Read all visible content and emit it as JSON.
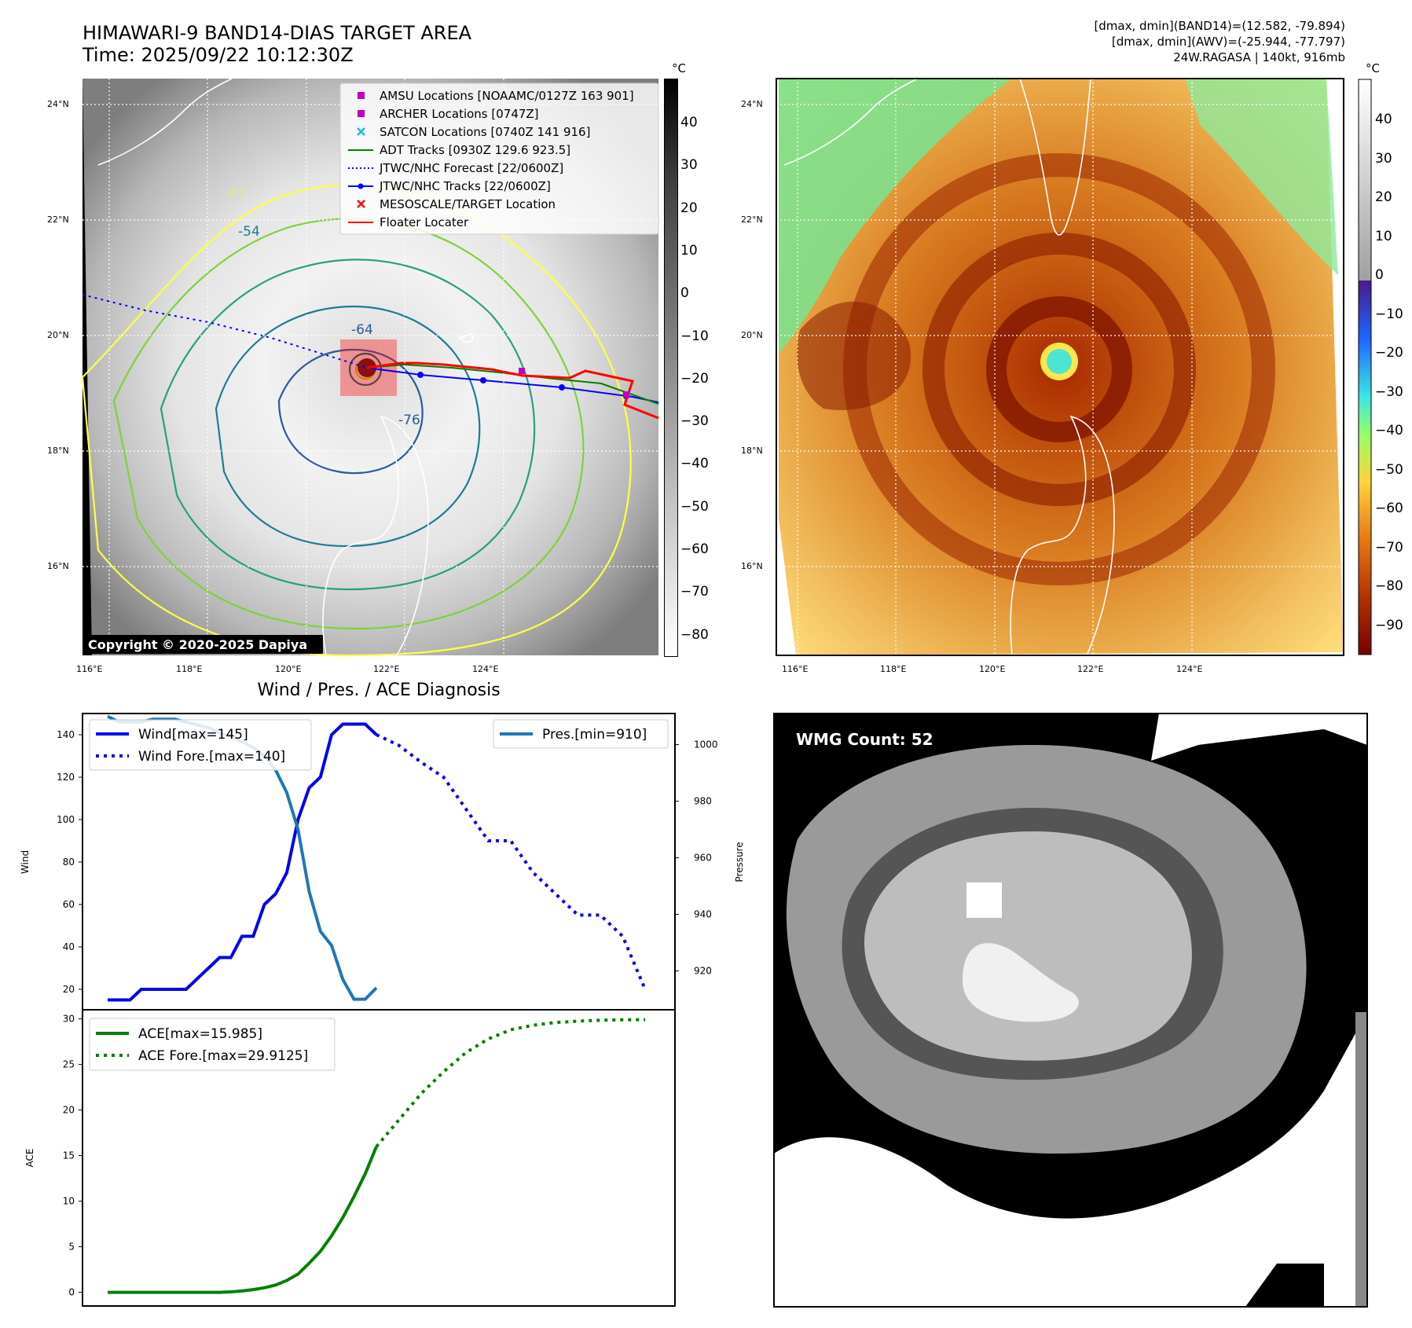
{
  "header": {
    "title_line1": "HIMAWARI-9 BAND14-DIAS TARGET AREA",
    "title_line2": "Time: 2025/09/22 10:12:30Z",
    "stats_line1": "[dmax, dmin](BAND14)=(12.582, -79.894)",
    "stats_line2": "[dmax, dmin](AWV)=(-25.944, -77.797)",
    "stats_line3": "24W.RAGASA | 140kt, 916mb"
  },
  "map_left": {
    "lon_ticks": [
      "116°E",
      "118°E",
      "120°E",
      "122°E",
      "124°E"
    ],
    "lat_ticks": [
      "24°N",
      "22°N",
      "20°N",
      "18°N",
      "16°N"
    ],
    "contour_labels": [
      "-31",
      "-54",
      "-64",
      "-76"
    ],
    "copyright": "Copyright © 2020-2025 Dapiya",
    "colorbar_unit": "°C",
    "colorbar_ticks": [
      "40",
      "30",
      "20",
      "10",
      "0",
      "−10",
      "−20",
      "−30",
      "−40",
      "−50",
      "−60",
      "−70",
      "−80"
    ],
    "legend": [
      {
        "label": "AMSU Locations [NOAAMC/0127Z 163 901]",
        "marker": "square",
        "color": "#bf00bf"
      },
      {
        "label": "ARCHER Locations [0747Z]",
        "marker": "square",
        "color": "#bf00bf"
      },
      {
        "label": "SATCON Locations [0740Z 141 916]",
        "marker": "x",
        "color": "#17becf"
      },
      {
        "label": "ADT Tracks [0930Z 129.6 923.5]",
        "marker": "line",
        "color": "#008000"
      },
      {
        "label": "JTWC/NHC Forecast [22/0600Z]",
        "marker": "dotted",
        "color": "#0000ff"
      },
      {
        "label": "JTWC/NHC Tracks [22/0600Z]",
        "marker": "line-dot",
        "color": "#0000ff"
      },
      {
        "label": "MESOSCALE/TARGET Location",
        "marker": "x",
        "color": "#ff0000"
      },
      {
        "label": "Floater Locater",
        "marker": "line",
        "color": "#ff0000"
      }
    ]
  },
  "map_right": {
    "lon_ticks": [
      "116°E",
      "118°E",
      "120°E",
      "122°E",
      "124°E"
    ],
    "lat_ticks": [
      "24°N",
      "22°N",
      "20°N",
      "18°N",
      "16°N"
    ],
    "colorbar_unit": "°C",
    "colorbar_ticks": [
      "40",
      "30",
      "20",
      "10",
      "0",
      "−10",
      "−20",
      "−30",
      "−40",
      "−50",
      "−60",
      "−70",
      "−80",
      "−90"
    ]
  },
  "wmg": {
    "label": "WMG Count: 52"
  },
  "chart_data": [
    {
      "type": "line",
      "title": "Wind / Pres. / ACE Diagnosis",
      "ylabel": "Wind",
      "y2label": "Pressure",
      "ylim": [
        10,
        150
      ],
      "y2lim": [
        906,
        1011
      ],
      "yticks": [
        "140",
        "120",
        "100",
        "80",
        "60",
        "40",
        "20"
      ],
      "y2ticks": [
        "1000",
        "980",
        "960",
        "940",
        "920"
      ],
      "legend_left": "top-left",
      "legend_right": "top-right",
      "series": [
        {
          "name": "Wind[max=145]",
          "style": "solid",
          "color": "#0000ee",
          "axis": "left",
          "x": [
            0,
            1,
            2,
            3,
            4,
            5,
            6,
            7,
            8,
            9,
            10,
            11,
            12,
            13,
            14,
            15,
            16,
            17,
            18,
            19,
            20,
            21,
            22,
            23,
            24
          ],
          "values": [
            15,
            15,
            15,
            20,
            20,
            20,
            20,
            20,
            25,
            30,
            35,
            35,
            45,
            45,
            60,
            65,
            75,
            100,
            115,
            120,
            140,
            145,
            145,
            145,
            140
          ]
        },
        {
          "name": "Wind Fore.[max=140]",
          "style": "dotted",
          "color": "#0000ee",
          "axis": "left",
          "x": [
            24,
            26,
            28,
            30,
            32,
            34,
            36,
            38,
            40,
            42,
            44,
            46,
            48
          ],
          "values": [
            140,
            135,
            127,
            120,
            105,
            90,
            90,
            75,
            65,
            55,
            55,
            45,
            20
          ]
        },
        {
          "name": "Pres.[min=910]",
          "style": "solid",
          "color": "#1f77b4",
          "axis": "right",
          "x": [
            0,
            1,
            2,
            3,
            4,
            5,
            6,
            7,
            8,
            9,
            10,
            11,
            12,
            13,
            14,
            15,
            16,
            17,
            18,
            19,
            20,
            21,
            22,
            23,
            24
          ],
          "values": [
            1010,
            1008,
            1008,
            1008,
            1009,
            1009,
            1009,
            1008,
            1007,
            1006,
            1004,
            1003,
            1001,
            999,
            996,
            991,
            983,
            970,
            948,
            934,
            929,
            917,
            910,
            910,
            914
          ]
        }
      ]
    },
    {
      "type": "line",
      "ylabel": "ACE",
      "ylim": [
        -1.5,
        31
      ],
      "yticks": [
        "30",
        "25",
        "20",
        "15",
        "10",
        "5",
        "0"
      ],
      "legend": "top-left",
      "series": [
        {
          "name": "ACE[max=15.985]",
          "style": "solid",
          "color": "#008000",
          "x": [
            0,
            2,
            4,
            6,
            8,
            10,
            11,
            12,
            13,
            14,
            15,
            16,
            17,
            18,
            19,
            20,
            21,
            22,
            23,
            24
          ],
          "values": [
            0,
            0,
            0,
            0,
            0,
            0,
            0.05,
            0.15,
            0.3,
            0.5,
            0.8,
            1.3,
            2.0,
            3.2,
            4.5,
            6.2,
            8.2,
            10.5,
            13.0,
            15.985
          ]
        },
        {
          "name": "ACE Fore.[max=29.9125]",
          "style": "dotted",
          "color": "#008000",
          "x": [
            24,
            26,
            28,
            30,
            32,
            34,
            36,
            38,
            40,
            42,
            44,
            46,
            48
          ],
          "values": [
            15.985,
            18.9,
            21.8,
            24.2,
            26.3,
            27.8,
            28.8,
            29.3,
            29.6,
            29.75,
            29.85,
            29.9,
            29.9125
          ]
        }
      ]
    }
  ]
}
